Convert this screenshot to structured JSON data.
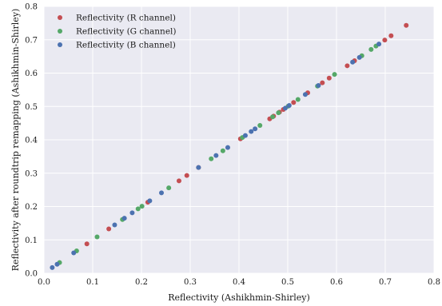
{
  "chart_data": {
    "type": "scatter",
    "title": "",
    "xlabel": "Reflectivity (Ashikhmin-Shirley)",
    "ylabel": "Reflectivity after roundtrip remapping (Ashikhmin-Shirley)",
    "xlim": [
      0,
      0.8
    ],
    "ylim": [
      0,
      0.8
    ],
    "xticks": [
      "0.0",
      "0.1",
      "0.2",
      "0.3",
      "0.4",
      "0.5",
      "0.6",
      "0.7",
      "0.8"
    ],
    "yticks": [
      "0.0",
      "0.1",
      "0.2",
      "0.3",
      "0.4",
      "0.5",
      "0.6",
      "0.7",
      "0.8"
    ],
    "grid": true,
    "background": "#eaeaf2",
    "legend_position": "top-left",
    "series": [
      {
        "name": "Reflectivity (R channel)",
        "color": "#c44e52",
        "x": [
          0.088,
          0.133,
          0.213,
          0.277,
          0.293,
          0.317,
          0.403,
          0.463,
          0.471,
          0.483,
          0.491,
          0.512,
          0.541,
          0.571,
          0.585,
          0.622,
          0.637,
          0.699,
          0.712,
          0.743
        ],
        "y": [
          0.088,
          0.133,
          0.213,
          0.277,
          0.293,
          0.317,
          0.403,
          0.463,
          0.471,
          0.483,
          0.491,
          0.512,
          0.541,
          0.571,
          0.585,
          0.622,
          0.637,
          0.699,
          0.712,
          0.743
        ]
      },
      {
        "name": "Reflectivity (G channel)",
        "color": "#55a868",
        "x": [
          0.032,
          0.067,
          0.109,
          0.161,
          0.193,
          0.201,
          0.256,
          0.343,
          0.367,
          0.407,
          0.443,
          0.469,
          0.481,
          0.501,
          0.521,
          0.561,
          0.596,
          0.652,
          0.671,
          0.681
        ],
        "y": [
          0.032,
          0.067,
          0.109,
          0.161,
          0.193,
          0.201,
          0.256,
          0.343,
          0.367,
          0.407,
          0.443,
          0.469,
          0.481,
          0.501,
          0.521,
          0.561,
          0.596,
          0.652,
          0.671,
          0.681
        ]
      },
      {
        "name": "Reflectivity (B channel)",
        "color": "#4c72b0",
        "x": [
          0.017,
          0.027,
          0.061,
          0.145,
          0.165,
          0.181,
          0.217,
          0.241,
          0.317,
          0.353,
          0.377,
          0.413,
          0.425,
          0.433,
          0.495,
          0.503,
          0.536,
          0.563,
          0.633,
          0.647,
          0.687
        ],
        "y": [
          0.017,
          0.027,
          0.061,
          0.145,
          0.165,
          0.181,
          0.217,
          0.241,
          0.317,
          0.353,
          0.377,
          0.413,
          0.425,
          0.433,
          0.495,
          0.503,
          0.536,
          0.563,
          0.633,
          0.647,
          0.687
        ]
      }
    ]
  }
}
